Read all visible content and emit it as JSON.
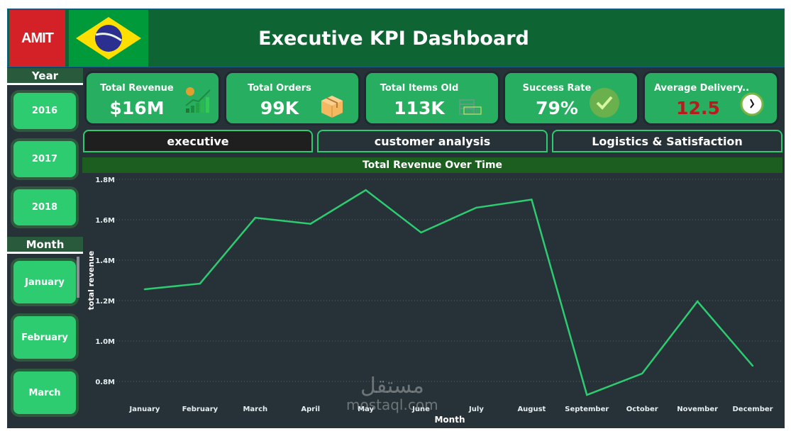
{
  "header": {
    "logo_text": "AMIT",
    "title": "Executive KPI Dashboard",
    "flag": "brazil-flag"
  },
  "colors": {
    "accent": "#2ecc71",
    "header_bg": "#0f6434",
    "kpi_bg": "#27ae60",
    "panel_bg": "#263238",
    "delivery_value": "#b71c1c"
  },
  "filters": {
    "year": {
      "label": "Year",
      "options": [
        "2016",
        "2017",
        "2018"
      ]
    },
    "month": {
      "label": "Month",
      "options": [
        "January",
        "February",
        "March"
      ]
    }
  },
  "kpis": [
    {
      "label": "Total Revenue",
      "value": "$16M",
      "icon": "revenue-growth-icon"
    },
    {
      "label": "Total Orders",
      "value": "99K",
      "icon": "package-box-icon"
    },
    {
      "label": "Total Items Old",
      "value": "113K",
      "icon": "sold-shop-icon"
    },
    {
      "label": "Success Rate",
      "value": "79%",
      "icon": "checkmark-icon"
    },
    {
      "label": "Average Delivery..",
      "value": "12.5",
      "icon": "clock-icon"
    }
  ],
  "tabs": [
    {
      "label": "executive",
      "active": true
    },
    {
      "label": "customer analysis",
      "active": false
    },
    {
      "label": "Logistics & Satisfaction",
      "active": false
    }
  ],
  "watermark": {
    "arabic": "مستقل",
    "latin": "mostaql.com"
  },
  "chart_data": {
    "type": "line",
    "title": "Total Revenue Over Time",
    "xlabel": "Month",
    "ylabel": "total revenue",
    "categories": [
      "January",
      "February",
      "March",
      "April",
      "May",
      "June",
      "July",
      "August",
      "September",
      "October",
      "November",
      "December"
    ],
    "values": [
      1.256,
      1.284,
      1.61,
      1.58,
      1.747,
      1.537,
      1.66,
      1.7,
      0.733,
      0.839,
      1.196,
      0.877
    ],
    "value_unit": "M",
    "yticks": [
      "0.8M",
      "1.0M",
      "1.2M",
      "1.4M",
      "1.6M",
      "1.8M"
    ],
    "ytick_values": [
      0.8,
      1.0,
      1.2,
      1.4,
      1.6,
      1.8
    ],
    "ylim": [
      0.8,
      1.8
    ],
    "grid": true,
    "legend": "none",
    "line_color": "#2ecc71"
  }
}
